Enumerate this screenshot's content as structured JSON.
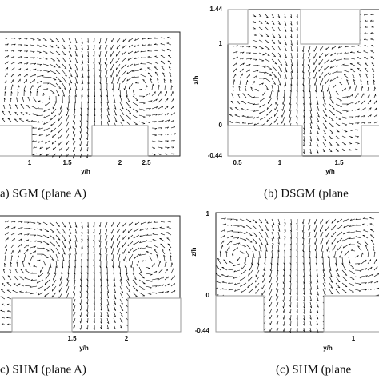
{
  "panels": [
    {
      "caption": "a) SGM (plane A)",
      "x_label": "y/h",
      "x_ticks": [
        "1",
        "1.5",
        "2",
        "2.5"
      ]
    },
    {
      "caption": "(b) DSGM (plane",
      "x_label": "y/h",
      "y_label": "z/h",
      "x_ticks": [
        "0.5",
        "1",
        "1.5"
      ],
      "y_ticks": [
        "1.44",
        "1",
        "0",
        "-0.44"
      ]
    },
    {
      "caption": "c) SHM (plane A)",
      "x_label": "y/h",
      "x_ticks": [
        "1.5",
        "2"
      ]
    },
    {
      "caption": "(c) SHM (plane",
      "x_label": "y/h",
      "y_label": "z/h",
      "x_ticks": [
        "1"
      ],
      "y_ticks": [
        "1",
        "0",
        "-0.44"
      ]
    }
  ]
}
